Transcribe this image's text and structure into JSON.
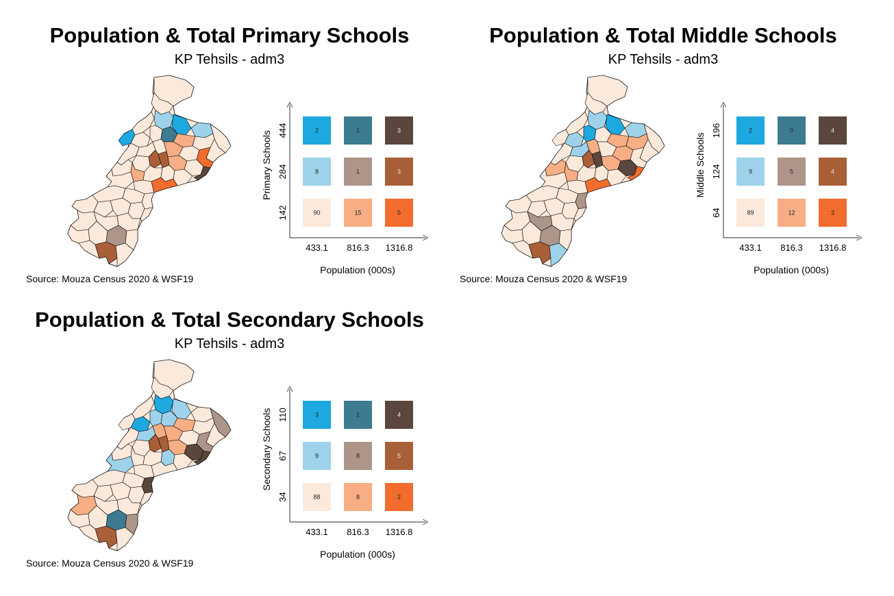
{
  "colors": {
    "palette": [
      "#fbe9db",
      "#f7ae84",
      "#f26d2d",
      "#9dd2ea",
      "#ad958a",
      "#a95f38",
      "#1da8e0",
      "#3d7b91",
      "#5a463d"
    ],
    "border": "#000000"
  },
  "panels": [
    {
      "title": "Population & Total Primary Schools",
      "subtitle": "KP Tehsils - adm3",
      "source": "Source: Mouza Census 2020 & WSF19",
      "legend": {
        "y_title": "Primary Schools",
        "x_title": "Population (000s)",
        "y_ticks": [
          "142",
          "284",
          "444"
        ],
        "x_ticks": [
          "433.1",
          "816.3",
          "1316.8"
        ],
        "counts": [
          [
            90,
            15,
            5
          ],
          [
            8,
            1,
            3
          ],
          [
            2,
            1,
            3
          ]
        ]
      }
    },
    {
      "title": "Population & Total Middle Schools",
      "subtitle": "KP Tehsils - adm3",
      "source": "Source: Mouza Census 2020 & WSF19",
      "legend": {
        "y_title": "Middle Schools",
        "x_title": "Population (000s)",
        "y_ticks": [
          "64",
          "124",
          "196"
        ],
        "x_ticks": [
          "433.1",
          "816.3",
          "1316.8"
        ],
        "counts": [
          [
            89,
            12,
            3
          ],
          [
            9,
            5,
            4
          ],
          [
            2,
            0,
            4
          ]
        ]
      }
    },
    {
      "title": "Population & Total Secondary Schools",
      "subtitle": "KP Tehsils - adm3",
      "source": "Source: Mouza Census 2020 & WSF19",
      "legend": {
        "y_title": "Secondary Schools",
        "x_title": "Population (000s)",
        "y_ticks": [
          "34",
          "67",
          "110"
        ],
        "x_ticks": [
          "433.1",
          "816.3",
          "1316.8"
        ],
        "counts": [
          [
            88,
            8,
            2
          ],
          [
            9,
            8,
            5
          ],
          [
            3,
            1,
            4
          ]
        ]
      }
    }
  ]
}
